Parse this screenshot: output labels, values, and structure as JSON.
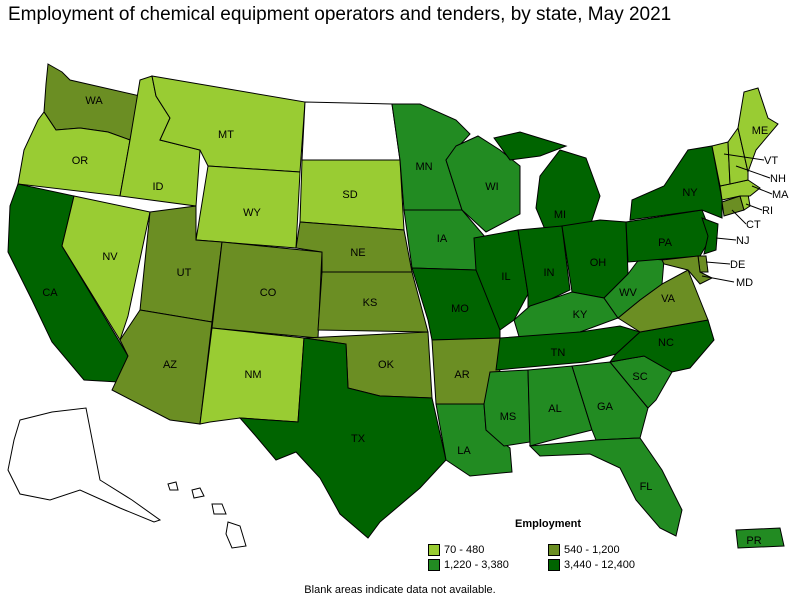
{
  "title": "Employment of chemical equipment operators and tenders, by state, May 2021",
  "legend": {
    "title": "Employment",
    "classes": [
      {
        "range": "70 - 480",
        "color": "#99cc33"
      },
      {
        "range": "540 - 1,200",
        "color": "#6b8e23"
      },
      {
        "range": "1,220 - 3,380",
        "color": "#228b22"
      },
      {
        "range": "3,440 - 12,400",
        "color": "#006400"
      }
    ]
  },
  "note": "Blank areas indicate data not available.",
  "states": [
    {
      "code": "WA",
      "class": 1
    },
    {
      "code": "OR",
      "class": 0
    },
    {
      "code": "CA",
      "class": 3
    },
    {
      "code": "NV",
      "class": 0
    },
    {
      "code": "ID",
      "class": 0
    },
    {
      "code": "MT",
      "class": 0
    },
    {
      "code": "WY",
      "class": 0
    },
    {
      "code": "UT",
      "class": 1
    },
    {
      "code": "AZ",
      "class": 1
    },
    {
      "code": "CO",
      "class": 1
    },
    {
      "code": "NM",
      "class": 0
    },
    {
      "code": "ND",
      "class": -1
    },
    {
      "code": "SD",
      "class": 0
    },
    {
      "code": "NE",
      "class": 1
    },
    {
      "code": "KS",
      "class": 1
    },
    {
      "code": "OK",
      "class": 1
    },
    {
      "code": "TX",
      "class": 3
    },
    {
      "code": "MN",
      "class": 2
    },
    {
      "code": "IA",
      "class": 2
    },
    {
      "code": "MO",
      "class": 3
    },
    {
      "code": "AR",
      "class": 1
    },
    {
      "code": "LA",
      "class": 2
    },
    {
      "code": "WI",
      "class": 2
    },
    {
      "code": "IL",
      "class": 3
    },
    {
      "code": "MI",
      "class": 3
    },
    {
      "code": "IN",
      "class": 3
    },
    {
      "code": "OH",
      "class": 3
    },
    {
      "code": "KY",
      "class": 2
    },
    {
      "code": "TN",
      "class": 3
    },
    {
      "code": "MS",
      "class": 2
    },
    {
      "code": "AL",
      "class": 2
    },
    {
      "code": "GA",
      "class": 2
    },
    {
      "code": "FL",
      "class": 2
    },
    {
      "code": "SC",
      "class": 2
    },
    {
      "code": "NC",
      "class": 3
    },
    {
      "code": "VA",
      "class": 1
    },
    {
      "code": "WV",
      "class": 2
    },
    {
      "code": "PA",
      "class": 3
    },
    {
      "code": "NY",
      "class": 3
    },
    {
      "code": "NJ",
      "class": 3
    },
    {
      "code": "DE",
      "class": 1
    },
    {
      "code": "MD",
      "class": 1
    },
    {
      "code": "CT",
      "class": 1
    },
    {
      "code": "RI",
      "class": 0
    },
    {
      "code": "MA",
      "class": 0
    },
    {
      "code": "VT",
      "class": 0
    },
    {
      "code": "NH",
      "class": 0
    },
    {
      "code": "ME",
      "class": 0
    },
    {
      "code": "AK",
      "class": -1
    },
    {
      "code": "HI",
      "class": -1
    },
    {
      "code": "PR",
      "class": 2
    }
  ]
}
